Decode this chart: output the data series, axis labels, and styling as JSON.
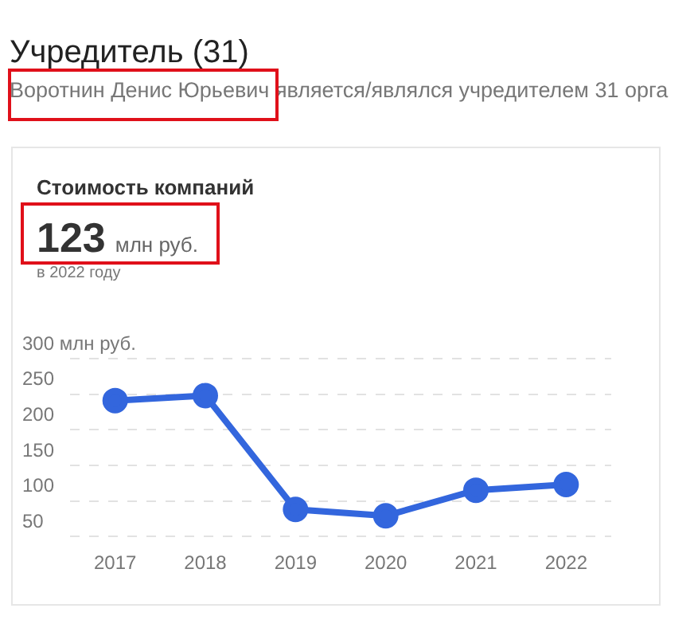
{
  "chart_data": {
    "type": "line",
    "title": "Учредитель (31)",
    "subtitle": "Воротнин Денис Юрьевич является/являлся учредителем 31 орга",
    "annotations": [
      "Стоимость компаний",
      "123 млн руб.",
      "в 2022 году"
    ],
    "categories": [
      "2017",
      "2018",
      "2019",
      "2020",
      "2021",
      "2022"
    ],
    "series": [
      {
        "color": "#3366dd",
        "values": [
          241,
          248,
          88,
          79,
          115,
          123
        ]
      }
    ],
    "ylim": [
      50,
      300
    ],
    "yticks": [
      50,
      100,
      150,
      200,
      250,
      {
        "value": 300,
        "label": "300 млн руб."
      }
    ],
    "grid": "y",
    "marker": "circle",
    "line_style": "solid"
  }
}
